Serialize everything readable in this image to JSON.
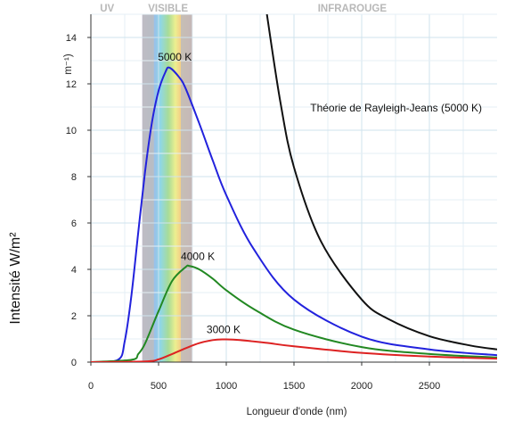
{
  "chart_data": {
    "type": "line",
    "title": "",
    "xlabel": "Longueur d'onde (nm)",
    "ylabel": "Intensité W/m²",
    "yunit_partial": "m⁻¹)",
    "xlim": [
      0,
      3000
    ],
    "ylim": [
      0,
      15
    ],
    "xticks": [
      0,
      500,
      1000,
      1500,
      2000,
      2500
    ],
    "yticks": [
      0,
      2,
      4,
      6,
      8,
      10,
      12,
      14
    ],
    "grid": true,
    "regions": [
      {
        "label": "UV",
        "range": [
          0,
          400
        ]
      },
      {
        "label": "VISIBLE",
        "range": [
          380,
          750
        ]
      },
      {
        "label": "INFRAROUGE",
        "range": [
          750,
          3000
        ]
      }
    ],
    "series": [
      {
        "name": "5000 K",
        "color": "#2222dd",
        "x": [
          0,
          200,
          250,
          300,
          350,
          400,
          450,
          500,
          550,
          580,
          650,
          700,
          800,
          900,
          1000,
          1200,
          1500,
          2000,
          2500,
          3000
        ],
        "y": [
          0,
          0.1,
          0.9,
          2.9,
          5.6,
          8.2,
          10.3,
          11.7,
          12.5,
          12.7,
          12.3,
          11.8,
          10.3,
          8.7,
          7.2,
          4.9,
          2.7,
          1.1,
          0.55,
          0.3
        ]
      },
      {
        "name": "4000 K",
        "color": "#228822",
        "x": [
          0,
          300,
          350,
          400,
          500,
          600,
          700,
          725,
          800,
          900,
          1000,
          1200,
          1500,
          2000,
          2500,
          3000
        ],
        "y": [
          0,
          0.1,
          0.35,
          0.8,
          2.2,
          3.5,
          4.1,
          4.15,
          4.0,
          3.6,
          3.1,
          2.3,
          1.4,
          0.65,
          0.35,
          0.2
        ]
      },
      {
        "name": "3000 K",
        "color": "#dd2222",
        "x": [
          0,
          400,
          500,
          600,
          700,
          800,
          900,
          970,
          1100,
          1300,
          1500,
          2000,
          2500,
          3000
        ],
        "y": [
          0,
          0.03,
          0.12,
          0.35,
          0.6,
          0.82,
          0.95,
          0.98,
          0.95,
          0.83,
          0.68,
          0.4,
          0.24,
          0.15
        ]
      },
      {
        "name": "Théorie de Rayleigh-Jeans (5000 K)",
        "color": "#111111",
        "x": [
          1300,
          1400,
          1500,
          1700,
          2000,
          2200,
          2500,
          2800,
          3000
        ],
        "y": [
          15,
          11.2,
          8.4,
          5.2,
          2.7,
          1.85,
          1.12,
          0.72,
          0.55
        ]
      }
    ],
    "annotations": [
      {
        "text": "5000 K",
        "x": 620,
        "y": 13.0
      },
      {
        "text": "4000 K",
        "x": 790,
        "y": 4.4
      },
      {
        "text": "3000 K",
        "x": 980,
        "y": 1.25
      },
      {
        "text": "Théorie de Rayleigh-Jeans (5000 K)",
        "x": 1620,
        "y": 10.8
      }
    ]
  }
}
